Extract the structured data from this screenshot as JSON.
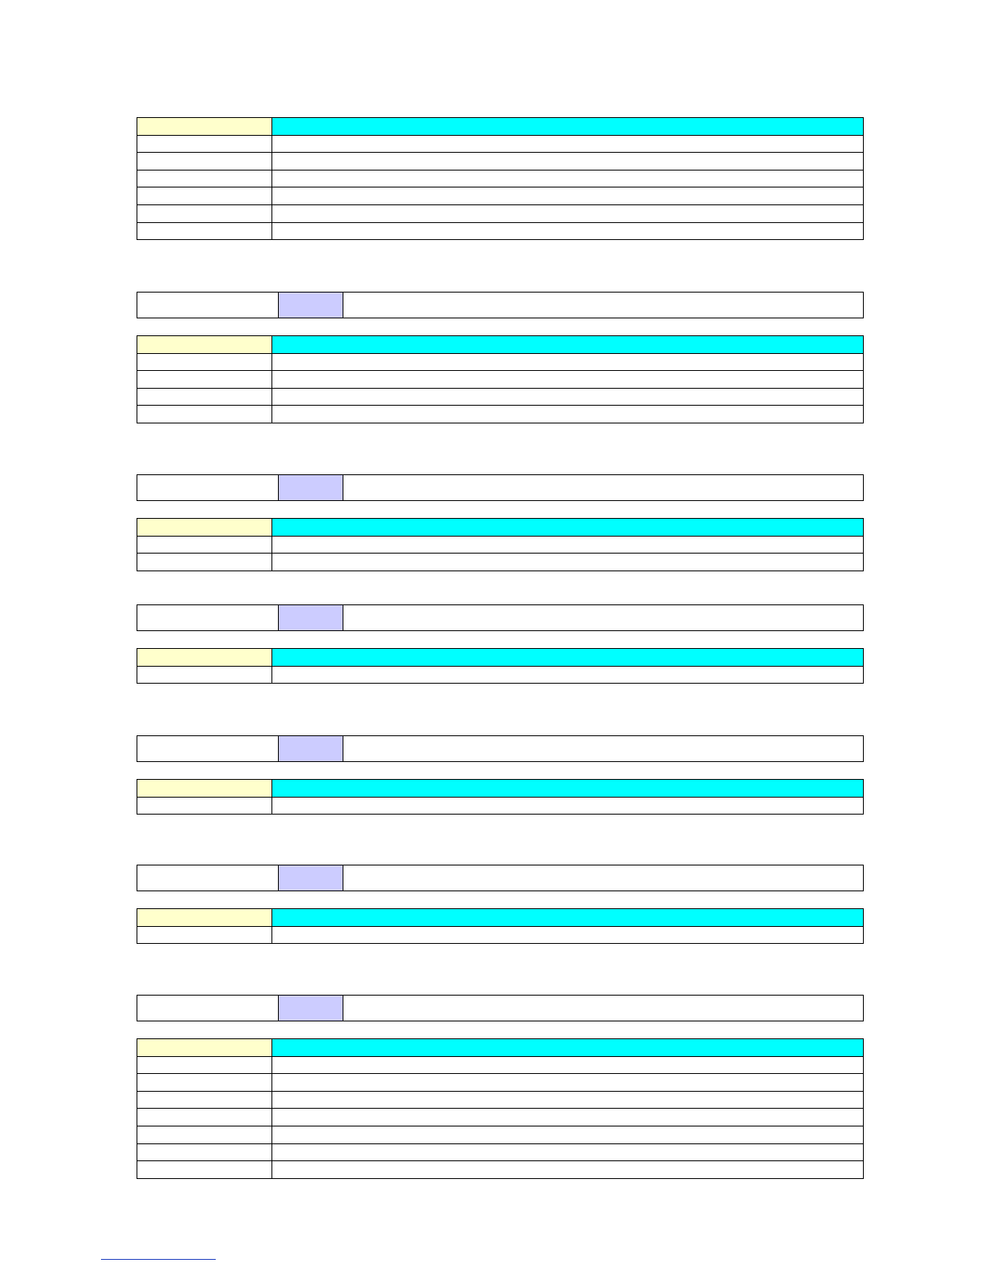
{
  "colors": {
    "key_header": "#ffffcc",
    "value_header": "#00ffff",
    "selector": "#ccccff",
    "footnote_rule": "#1f3fbf"
  },
  "sections": [
    {
      "selector": {
        "label": "",
        "tag": "",
        "value": ""
      },
      "header": {
        "key": "",
        "value": ""
      },
      "rows": [
        {
          "key": "",
          "value": ""
        },
        {
          "key": "",
          "value": ""
        },
        {
          "key": "",
          "value": ""
        },
        {
          "key": "",
          "value": ""
        },
        {
          "key": "",
          "value": ""
        },
        {
          "key": "",
          "value": ""
        }
      ]
    },
    {
      "selector": {
        "label": "",
        "tag": "",
        "value": ""
      },
      "header": {
        "key": "",
        "value": ""
      },
      "rows": [
        {
          "key": "",
          "value": ""
        },
        {
          "key": "",
          "value": ""
        },
        {
          "key": "",
          "value": ""
        },
        {
          "key": "",
          "value": ""
        }
      ]
    },
    {
      "selector": {
        "label": "",
        "tag": "",
        "value": ""
      },
      "header": {
        "key": "",
        "value": ""
      },
      "rows": [
        {
          "key": "",
          "value": ""
        },
        {
          "key": "",
          "value": ""
        }
      ]
    },
    {
      "selector": {
        "label": "",
        "tag": "",
        "value": ""
      },
      "header": {
        "key": "",
        "value": ""
      },
      "rows": [
        {
          "key": "",
          "value": ""
        }
      ]
    },
    {
      "selector": {
        "label": "",
        "tag": "",
        "value": ""
      },
      "header": {
        "key": "",
        "value": ""
      },
      "rows": [
        {
          "key": "",
          "value": ""
        }
      ]
    },
    {
      "selector": {
        "label": "",
        "tag": "",
        "value": ""
      },
      "header": {
        "key": "",
        "value": ""
      },
      "rows": [
        {
          "key": "",
          "value": ""
        }
      ]
    },
    {
      "selector": {
        "label": "",
        "tag": "",
        "value": ""
      },
      "header": {
        "key": "",
        "value": ""
      },
      "rows": [
        {
          "key": "",
          "value": ""
        },
        {
          "key": "",
          "value": ""
        },
        {
          "key": "",
          "value": ""
        },
        {
          "key": "",
          "value": ""
        },
        {
          "key": "",
          "value": ""
        },
        {
          "key": "",
          "value": ""
        },
        {
          "key": "",
          "value": ""
        }
      ]
    }
  ]
}
